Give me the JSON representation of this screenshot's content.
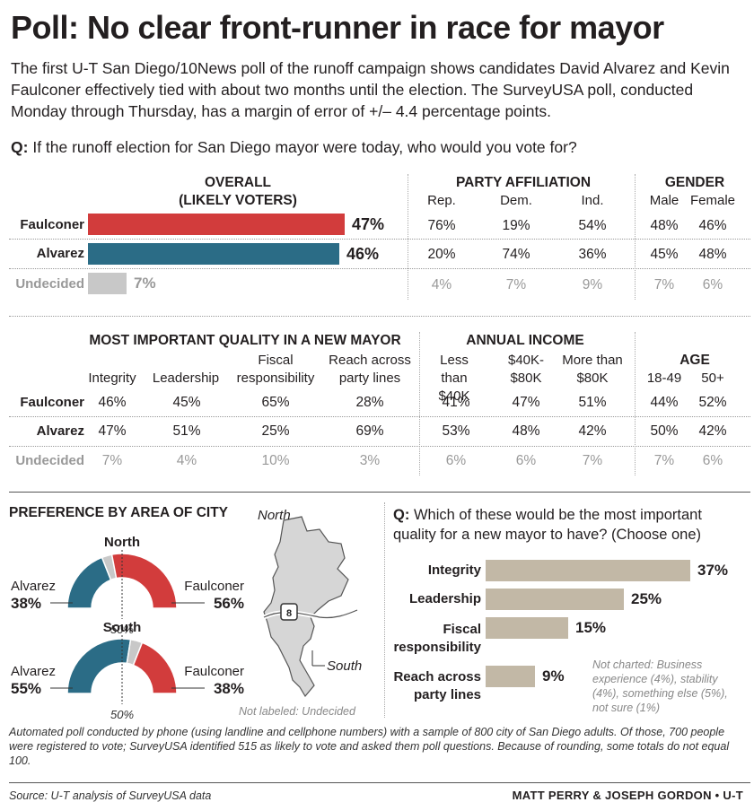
{
  "headline": "Poll: No clear front-runner in race for mayor",
  "intro": "The first U-T San Diego/10News poll of the runoff campaign shows candidates David Alvarez and Kevin Faulconer effectively tied with about two months until the election. The SurveyUSA poll, conducted Monday through Thursday, has a margin of error of +/– 4.4 percentage points.",
  "question1": {
    "prefix": "Q:",
    "text": "If the runoff election for San Diego mayor were today, who would you vote for?"
  },
  "colors": {
    "faulconer": "#d23c3c",
    "alvarez": "#2b6c86",
    "undecided": "#c8c8c8",
    "quality_bar": "#c2b8a6"
  },
  "row_labels": [
    "Faulconer",
    "Alvarez",
    "Undecided"
  ],
  "headers": {
    "overall": "OVERALL",
    "overall_sub": "(LIKELY VOTERS)",
    "party": "PARTY AFFILIATION",
    "party_cols": [
      "Rep.",
      "Dem.",
      "Ind."
    ],
    "gender": "GENDER",
    "gender_cols": [
      "Male",
      "Female"
    ],
    "quality": "MOST IMPORTANT QUALITY IN A NEW MAYOR",
    "quality_cols": [
      "Integrity",
      "Leadership",
      "Fiscal responsibility",
      "Reach across party lines"
    ],
    "income": "ANNUAL INCOME",
    "income_cols": [
      "Less than $40K",
      "$40K- $80K",
      "More than $80K"
    ],
    "age": "AGE",
    "age_cols": [
      "18-49",
      "50+"
    ]
  },
  "party_values": [
    [
      "76%",
      "19%",
      "54%"
    ],
    [
      "20%",
      "74%",
      "36%"
    ],
    [
      "4%",
      "7%",
      "9%"
    ]
  ],
  "gender_values": [
    [
      "48%",
      "46%"
    ],
    [
      "45%",
      "48%"
    ],
    [
      "7%",
      "6%"
    ]
  ],
  "quality_values": [
    [
      "46%",
      "45%",
      "65%",
      "28%"
    ],
    [
      "47%",
      "51%",
      "25%",
      "69%"
    ],
    [
      "7%",
      "4%",
      "10%",
      "3%"
    ]
  ],
  "income_values": [
    [
      "41%",
      "47%",
      "51%"
    ],
    [
      "53%",
      "48%",
      "42%"
    ],
    [
      "6%",
      "6%",
      "7%"
    ]
  ],
  "age_values": [
    [
      "44%",
      "52%"
    ],
    [
      "50%",
      "42%"
    ],
    [
      "7%",
      "6%"
    ]
  ],
  "area": {
    "title": "PREFERENCE BY AREA OF CITY",
    "north": {
      "label": "North",
      "alvarez_label": "Alvarez",
      "faulconer_label": "Faulconer",
      "alvarez_text": "38%",
      "faulconer_text": "56%",
      "mid": "50%"
    },
    "south": {
      "label": "South",
      "alvarez_label": "Alvarez",
      "faulconer_label": "Faulconer",
      "alvarez_text": "55%",
      "faulconer_text": "38%",
      "mid": "50%"
    },
    "map_north": "North",
    "map_south": "South",
    "highway": "8",
    "note": "Not labeled: Undecided"
  },
  "question2": {
    "prefix": "Q:",
    "text": "Which of these would be the most important quality for a new mayor to have? (Choose one)"
  },
  "not_charted": "Not charted: Business experience (4%), stability (4%), something else (5%), not sure (1%)",
  "footnote": "Automated poll conducted by phone (using landline and cellphone numbers) with a sample of 800 city of San Diego adults. Of those, 700 people were registered to vote; SurveyUSA identified 515 as likely to vote and asked them poll questions. Because of rounding, some totals do not equal 100.",
  "source": "Source: U-T analysis of SurveyUSA data",
  "credit": "MATT PERRY & JOSEPH GORDON • U-T",
  "chart_data": [
    {
      "type": "bar",
      "title": "OVERALL (LIKELY VOTERS)",
      "categories": [
        "Faulconer",
        "Alvarez",
        "Undecided"
      ],
      "values": [
        47,
        46,
        7
      ],
      "labels": [
        "47%",
        "46%",
        "7%"
      ]
    },
    {
      "type": "pie",
      "title": "North",
      "categories": [
        "Alvarez",
        "Undecided",
        "Faulconer"
      ],
      "values": [
        38,
        6,
        56
      ]
    },
    {
      "type": "pie",
      "title": "South",
      "categories": [
        "Alvarez",
        "Undecided",
        "Faulconer"
      ],
      "values": [
        55,
        7,
        38
      ]
    },
    {
      "type": "bar",
      "title": "Which of these would be the most important quality for a new mayor to have? (Choose one)",
      "categories": [
        "Integrity",
        "Leadership",
        "Fiscal responsibility",
        "Reach across party lines"
      ],
      "values": [
        37,
        25,
        15,
        9
      ],
      "labels": [
        "37%",
        "25%",
        "15%",
        "9%"
      ]
    }
  ]
}
